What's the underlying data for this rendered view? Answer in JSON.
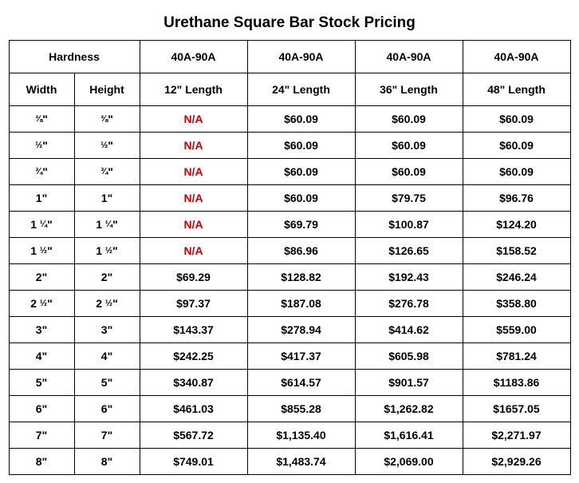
{
  "title": "Urethane Square Bar Stock Pricing",
  "header_hardness": "Hardness",
  "hardness_value": "40A-90A",
  "header_width": "Width",
  "header_height": "Height",
  "lengths": [
    "12\" Length",
    "24\" Length",
    "36\" Length",
    "48\" Length"
  ],
  "na_label": "N/A",
  "rows": [
    {
      "width": "⅜\"",
      "height": "⅜\"",
      "p12": "N/A",
      "p24": "$60.09",
      "p36": "$60.09",
      "p48": "$60.09"
    },
    {
      "width": "½\"",
      "height": "½\"",
      "p12": "N/A",
      "p24": "$60.09",
      "p36": "$60.09",
      "p48": "$60.09"
    },
    {
      "width": "¾\"",
      "height": "¾\"",
      "p12": "N/A",
      "p24": "$60.09",
      "p36": "$60.09",
      "p48": "$60.09"
    },
    {
      "width": "1\"",
      "height": "1\"",
      "p12": "N/A",
      "p24": "$60.09",
      "p36": "$79.75",
      "p48": "$96.76"
    },
    {
      "width": "1 ¼\"",
      "height": "1 ¼\"",
      "p12": "N/A",
      "p24": "$69.79",
      "p36": "$100.87",
      "p48": "$124.20"
    },
    {
      "width": "1 ½\"",
      "height": "1 ½\"",
      "p12": "N/A",
      "p24": "$86.96",
      "p36": "$126.65",
      "p48": "$158.52"
    },
    {
      "width": "2\"",
      "height": "2\"",
      "p12": "$69.29",
      "p24": "$128.82",
      "p36": "$192.43",
      "p48": "$246.24"
    },
    {
      "width": "2 ½\"",
      "height": "2 ½\"",
      "p12": "$97.37",
      "p24": "$187.08",
      "p36": "$276.78",
      "p48": "$358.80"
    },
    {
      "width": "3\"",
      "height": "3\"",
      "p12": "$143.37",
      "p24": "$278.94",
      "p36": "$414.62",
      "p48": "$559.00"
    },
    {
      "width": "4\"",
      "height": "4\"",
      "p12": "$242.25",
      "p24": "$417.37",
      "p36": "$605.98",
      "p48": "$781.24"
    },
    {
      "width": "5\"",
      "height": "5\"",
      "p12": "$340.87",
      "p24": "$614.57",
      "p36": "$901.57",
      "p48": "$1183.86"
    },
    {
      "width": "6\"",
      "height": "6\"",
      "p12": "$461.03",
      "p24": "$855.28",
      "p36": "$1,262.82",
      "p48": "$1657.05"
    },
    {
      "width": "7\"",
      "height": "7\"",
      "p12": "$567.72",
      "p24": "$1,135.40",
      "p36": "$1,616.41",
      "p48": "$2,271.97"
    },
    {
      "width": "8\"",
      "height": "8\"",
      "p12": "$749.01",
      "p24": "$1,483.74",
      "p36": "$2,069.00",
      "p48": "$2,929.26"
    }
  ]
}
